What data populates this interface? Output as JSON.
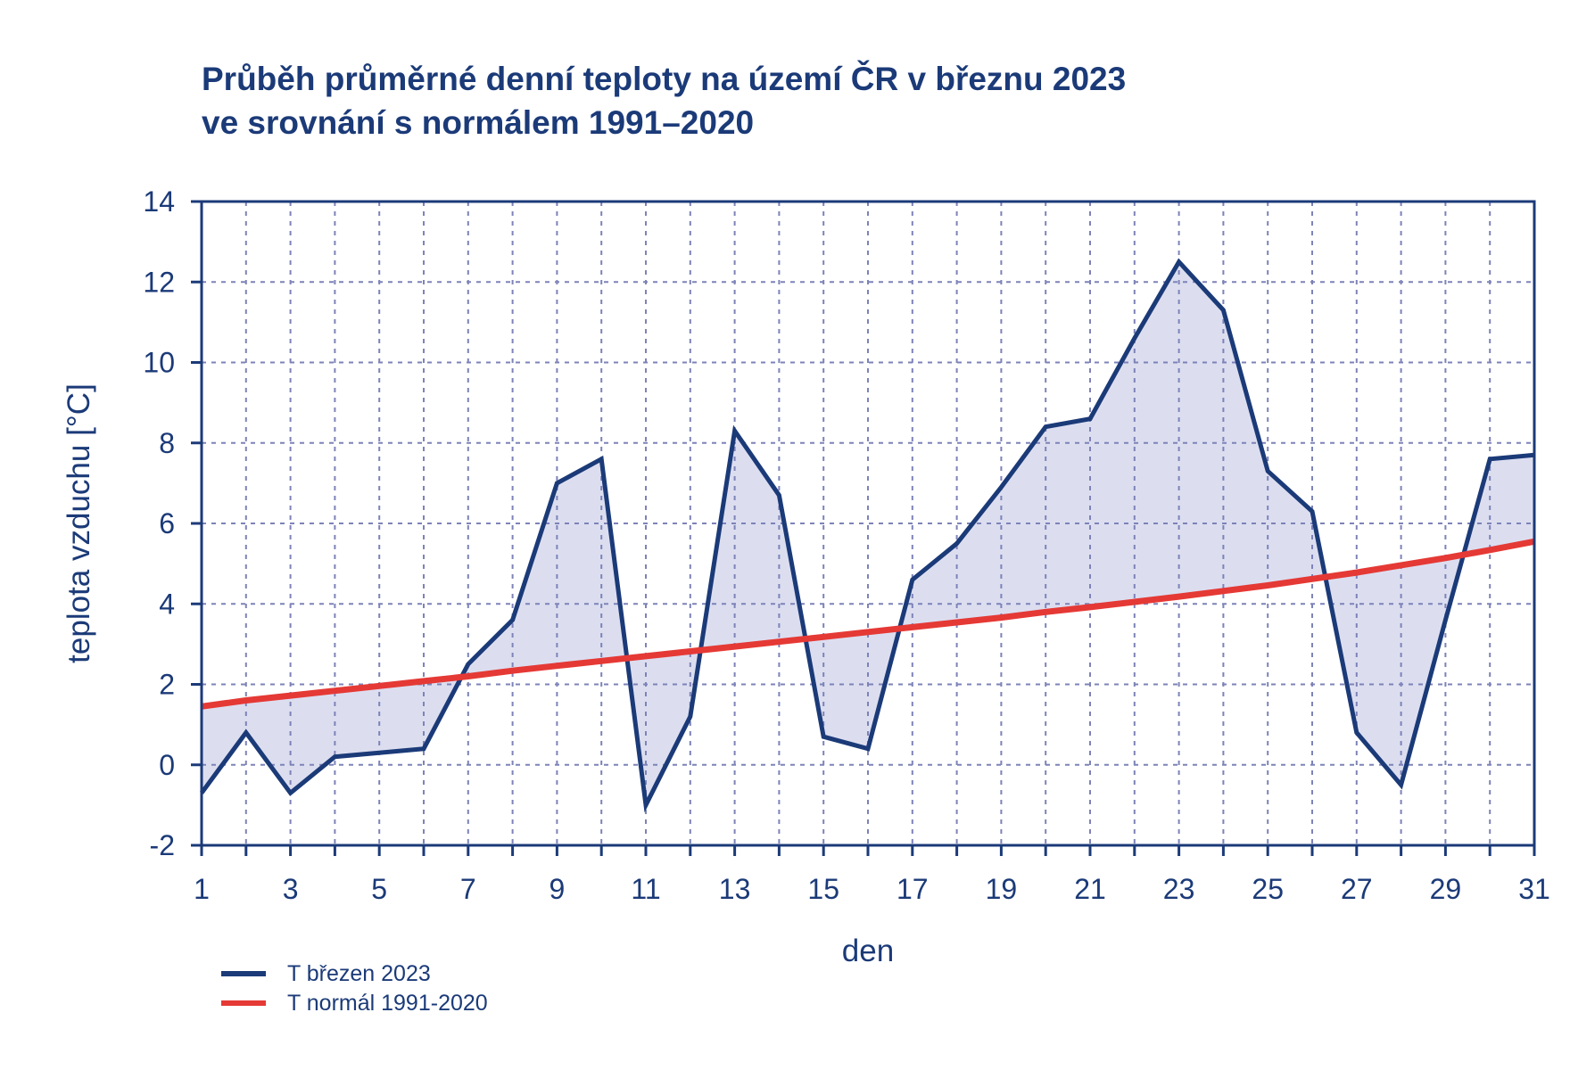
{
  "chart_data": {
    "type": "line",
    "title": "Průběh průměrné denní teploty na území ČR v březnu 2023",
    "subtitle": "ve srovnání s normálem 1991–2020",
    "xlabel": "den",
    "ylabel": "teplota vzduchu [°C]",
    "xlim": [
      1,
      31
    ],
    "ylim": [
      -2,
      14
    ],
    "x_ticks": [
      1,
      3,
      5,
      7,
      9,
      11,
      13,
      15,
      17,
      19,
      21,
      23,
      25,
      27,
      29,
      31
    ],
    "y_ticks": [
      -2,
      0,
      2,
      4,
      6,
      8,
      10,
      12,
      14
    ],
    "grid": true,
    "fill_between_series": true,
    "legend_position": "bottom-left",
    "x": [
      1,
      2,
      3,
      4,
      5,
      6,
      7,
      8,
      9,
      10,
      11,
      12,
      13,
      14,
      15,
      16,
      17,
      18,
      19,
      20,
      21,
      22,
      23,
      24,
      25,
      26,
      27,
      28,
      29,
      30,
      31
    ],
    "series": [
      {
        "name": "T březen 2023",
        "color": "#1b3a78",
        "values": [
          -0.7,
          0.8,
          -0.7,
          0.2,
          0.3,
          0.4,
          2.5,
          3.6,
          7.0,
          7.6,
          -1.0,
          1.2,
          8.3,
          6.7,
          0.7,
          0.4,
          4.6,
          5.5,
          6.9,
          8.4,
          8.6,
          10.6,
          12.5,
          11.3,
          7.3,
          6.3,
          0.8,
          -0.5,
          3.6,
          7.6,
          7.7
        ]
      },
      {
        "name": "T normál 1991-2020",
        "color": "#e53935",
        "values": [
          1.45,
          1.6,
          1.72,
          1.84,
          1.96,
          2.08,
          2.2,
          2.34,
          2.46,
          2.58,
          2.7,
          2.82,
          2.94,
          3.06,
          3.18,
          3.3,
          3.42,
          3.54,
          3.66,
          3.8,
          3.92,
          4.05,
          4.18,
          4.32,
          4.46,
          4.62,
          4.78,
          4.96,
          5.14,
          5.34,
          5.55
        ]
      }
    ],
    "fill_color": "#dcdef0",
    "grid_color": "#7d83b8"
  }
}
